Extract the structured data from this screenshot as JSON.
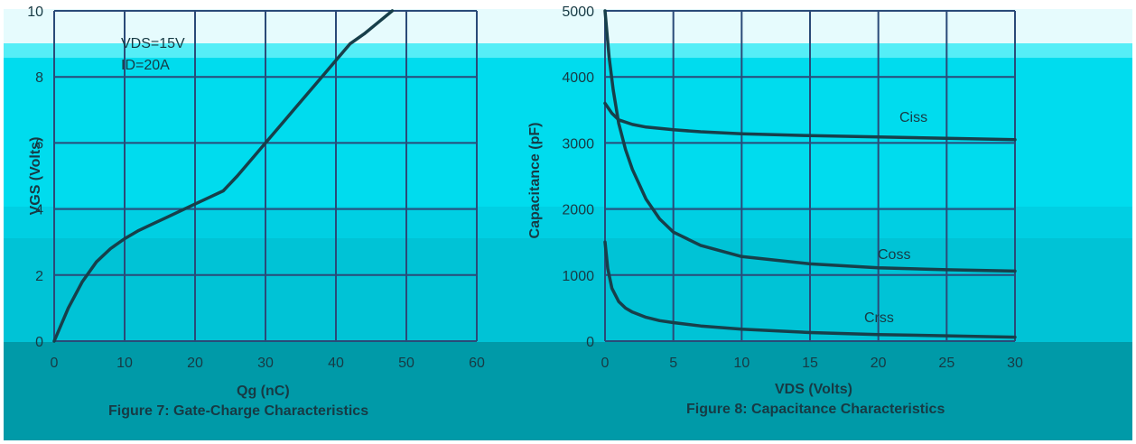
{
  "chart_data": [
    {
      "type": "line",
      "ylabel": "VGS (Volts)",
      "xlabel": "Qg (nC)",
      "caption": "Figure 7: Gate-Charge Characteristics",
      "annotation": [
        "VDS=15V",
        "ID=20A"
      ],
      "xlim": [
        0,
        60
      ],
      "ylim": [
        0,
        10
      ],
      "xticks": [
        0,
        10,
        20,
        30,
        40,
        50,
        60
      ],
      "yticks": [
        0,
        2,
        4,
        6,
        8,
        10
      ],
      "grid": true,
      "series": [
        {
          "x": [
            0,
            2,
            4,
            6,
            8,
            10,
            12,
            14,
            16,
            18,
            20,
            22,
            24,
            26,
            28,
            30,
            32,
            34,
            36,
            38,
            40,
            42,
            44,
            46,
            48
          ],
          "y": [
            0,
            1.0,
            1.8,
            2.4,
            2.8,
            3.1,
            3.35,
            3.55,
            3.75,
            3.95,
            4.15,
            4.35,
            4.55,
            5.0,
            5.5,
            6.0,
            6.5,
            7.0,
            7.5,
            8.0,
            8.5,
            9.0,
            9.3,
            9.65,
            10.0
          ]
        }
      ]
    },
    {
      "type": "line",
      "ylabel": "Capacitance (pF)",
      "xlabel": "VDS (Volts)",
      "caption": "Figure 8: Capacitance Characteristics",
      "xlim": [
        0,
        30
      ],
      "ylim": [
        0,
        5000
      ],
      "xticks": [
        0,
        5,
        10,
        15,
        20,
        25,
        30
      ],
      "yticks": [
        0,
        1000,
        2000,
        3000,
        4000,
        5000
      ],
      "grid": true,
      "series": [
        {
          "name": "Ciss",
          "x": [
            0,
            0.5,
            1,
            2,
            3,
            5,
            7,
            10,
            15,
            20,
            25,
            30
          ],
          "y": [
            3600,
            3450,
            3350,
            3280,
            3240,
            3200,
            3170,
            3140,
            3110,
            3090,
            3070,
            3050
          ]
        },
        {
          "name": "Coss",
          "x": [
            0,
            0.3,
            0.6,
            1,
            1.5,
            2,
            3,
            4,
            5,
            7,
            10,
            15,
            20,
            25,
            30
          ],
          "y": [
            5000,
            4300,
            3800,
            3300,
            2900,
            2600,
            2150,
            1850,
            1650,
            1450,
            1280,
            1170,
            1110,
            1080,
            1060
          ]
        },
        {
          "name": "Crss",
          "x": [
            0,
            0.2,
            0.5,
            1,
            1.5,
            2,
            3,
            4,
            5,
            7,
            10,
            15,
            20,
            25,
            30
          ],
          "y": [
            1500,
            1100,
            800,
            600,
            500,
            440,
            360,
            310,
            280,
            230,
            180,
            130,
            100,
            80,
            60
          ]
        }
      ]
    }
  ]
}
